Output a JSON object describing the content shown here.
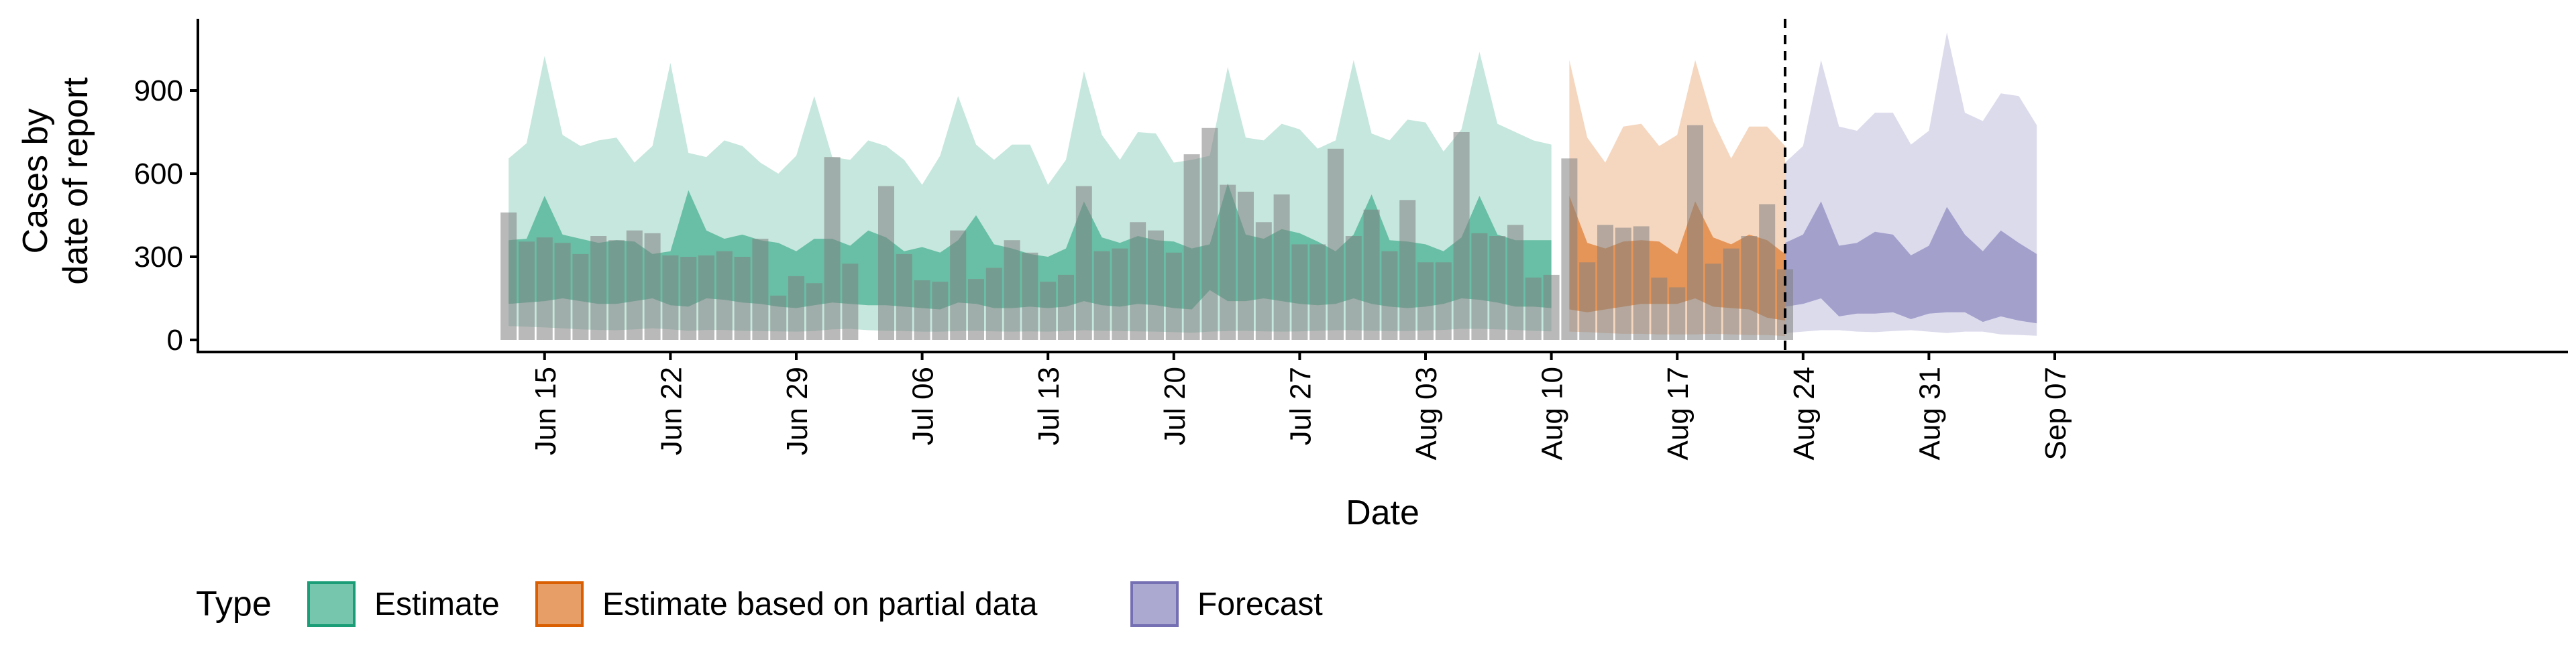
{
  "chart_data": {
    "type": "area",
    "title": "",
    "ylabel_lines": [
      "Cases by",
      "date of report"
    ],
    "xlabel": "Date",
    "ylim": [
      0,
      1150
    ],
    "xlim": [
      "2020-06-06",
      "2020-09-09"
    ],
    "yticks": [
      0,
      300,
      600,
      900
    ],
    "xticks": [
      {
        "date": "2020-06-15",
        "label": "Jun 15"
      },
      {
        "date": "2020-06-22",
        "label": "Jun 22"
      },
      {
        "date": "2020-06-29",
        "label": "Jun 29"
      },
      {
        "date": "2020-07-06",
        "label": "Jul 06"
      },
      {
        "date": "2020-07-13",
        "label": "Jul 13"
      },
      {
        "date": "2020-07-20",
        "label": "Jul 20"
      },
      {
        "date": "2020-07-27",
        "label": "Jul 27"
      },
      {
        "date": "2020-08-03",
        "label": "Aug 03"
      },
      {
        "date": "2020-08-10",
        "label": "Aug 10"
      },
      {
        "date": "2020-08-17",
        "label": "Aug 17"
      },
      {
        "date": "2020-08-24",
        "label": "Aug 24"
      },
      {
        "date": "2020-08-31",
        "label": "Aug 31"
      },
      {
        "date": "2020-09-07",
        "label": "Sep 07"
      }
    ],
    "vline_date": "2020-08-23",
    "grid": false,
    "legend": {
      "position": "bottom-left",
      "title": "Type",
      "items": [
        {
          "label": "Estimate",
          "color": "#1b9e77"
        },
        {
          "label": "Estimate based on partial data",
          "color": "#d95f02"
        },
        {
          "label": "Forecast",
          "color": "#7570b3"
        }
      ]
    },
    "bars": {
      "color": "#808080",
      "start_date": "2020-06-13",
      "values": [
        460,
        355,
        370,
        350,
        310,
        375,
        360,
        395,
        385,
        305,
        300,
        305,
        320,
        300,
        365,
        160,
        230,
        205,
        660,
        275,
        0,
        555,
        310,
        215,
        210,
        395,
        220,
        260,
        360,
        315,
        210,
        235,
        555,
        320,
        330,
        425,
        395,
        315,
        670,
        765,
        560,
        535,
        425,
        525,
        345,
        345,
        690,
        375,
        470,
        320,
        505,
        280,
        280,
        750,
        385,
        375,
        415,
        225,
        235,
        655,
        280,
        415,
        405,
        410,
        225,
        190,
        775,
        275,
        330,
        375,
        490,
        255
      ],
      "gap_dates": [
        "2020-07-03"
      ]
    },
    "series": [
      {
        "name": "Estimate",
        "color": "#1b9e77",
        "start_date": "2020-06-13",
        "lower90": [
          50,
          48,
          45,
          42,
          38,
          36,
          35,
          38,
          42,
          38,
          33,
          36,
          36,
          33,
          32,
          31,
          30,
          32,
          38,
          40,
          35,
          33,
          32,
          30,
          30,
          32,
          33,
          31,
          30,
          31,
          30,
          32,
          35,
          33,
          32,
          31,
          30,
          28,
          26,
          30,
          32,
          33,
          31,
          30,
          31,
          33,
          35,
          35,
          33,
          32,
          32,
          34,
          36,
          40,
          40,
          38,
          36,
          33,
          31
        ],
        "lower50": [
          130,
          135,
          140,
          150,
          140,
          130,
          130,
          140,
          150,
          125,
          120,
          150,
          145,
          135,
          130,
          120,
          115,
          125,
          135,
          130,
          125,
          125,
          120,
          115,
          110,
          135,
          130,
          115,
          115,
          120,
          115,
          120,
          140,
          125,
          120,
          130,
          125,
          115,
          110,
          180,
          140,
          140,
          150,
          140,
          130,
          125,
          130,
          150,
          130,
          120,
          115,
          120,
          130,
          150,
          145,
          135,
          120,
          120,
          115
        ],
        "upper50": [
          360,
          365,
          520,
          380,
          365,
          350,
          360,
          355,
          310,
          320,
          540,
          395,
          365,
          380,
          360,
          350,
          320,
          365,
          365,
          340,
          395,
          370,
          320,
          335,
          315,
          360,
          450,
          345,
          330,
          310,
          300,
          330,
          500,
          370,
          350,
          375,
          360,
          355,
          330,
          345,
          565,
          380,
          365,
          400,
          385,
          355,
          320,
          380,
          525,
          360,
          355,
          345,
          320,
          370,
          520,
          380,
          360,
          360,
          360
        ],
        "upper90": [
          655,
          710,
          1025,
          740,
          700,
          720,
          730,
          640,
          700,
          1000,
          675,
          660,
          720,
          700,
          640,
          600,
          665,
          880,
          660,
          650,
          720,
          700,
          650,
          560,
          665,
          880,
          705,
          650,
          705,
          705,
          560,
          650,
          970,
          740,
          650,
          750,
          745,
          640,
          650,
          665,
          985,
          730,
          720,
          780,
          760,
          690,
          720,
          1010,
          745,
          720,
          795,
          785,
          680,
          760,
          1040,
          780,
          750,
          720,
          705
        ]
      },
      {
        "name": "Estimate based on partial data",
        "color": "#d95f02",
        "start_date": "2020-08-11",
        "lower90": [
          30,
          28,
          25,
          22,
          22,
          20,
          20,
          20,
          22,
          20,
          18,
          18,
          14
        ],
        "lower50": [
          110,
          100,
          110,
          120,
          130,
          130,
          130,
          150,
          120,
          115,
          110,
          80,
          70
        ],
        "upper50": [
          520,
          350,
          330,
          355,
          360,
          355,
          310,
          500,
          370,
          345,
          380,
          360,
          310
        ],
        "upper90": [
          1010,
          730,
          640,
          770,
          780,
          700,
          740,
          1010,
          790,
          655,
          770,
          770,
          700
        ]
      },
      {
        "name": "Forecast",
        "color": "#7570b3",
        "start_date": "2020-08-23",
        "lower90": [
          25,
          30,
          35,
          35,
          30,
          28,
          32,
          35,
          30,
          25,
          30,
          30,
          20,
          18,
          15
        ],
        "lower50": [
          120,
          130,
          150,
          85,
          95,
          95,
          100,
          75,
          95,
          100,
          100,
          65,
          85,
          70,
          60
        ],
        "upper50": [
          350,
          380,
          500,
          340,
          350,
          390,
          380,
          305,
          340,
          480,
          380,
          320,
          395,
          350,
          310
        ],
        "upper90": [
          640,
          700,
          1010,
          770,
          755,
          820,
          820,
          705,
          755,
          1110,
          820,
          790,
          890,
          880,
          775
        ]
      }
    ]
  }
}
